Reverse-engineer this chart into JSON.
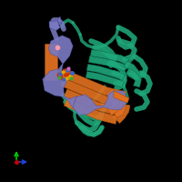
{
  "background_color": "#000000",
  "figsize": [
    2.0,
    2.0
  ],
  "dpi": 100,
  "colors": {
    "green": "#1fa87a",
    "green_edge": "#0d7055",
    "orange": "#e07020",
    "orange_edge": "#a04e10",
    "purple": "#7878c0",
    "purple_edge": "#4444a0",
    "axis_green": "#00cc00",
    "axis_blue": "#2244dd",
    "axis_red": "#cc0000"
  }
}
